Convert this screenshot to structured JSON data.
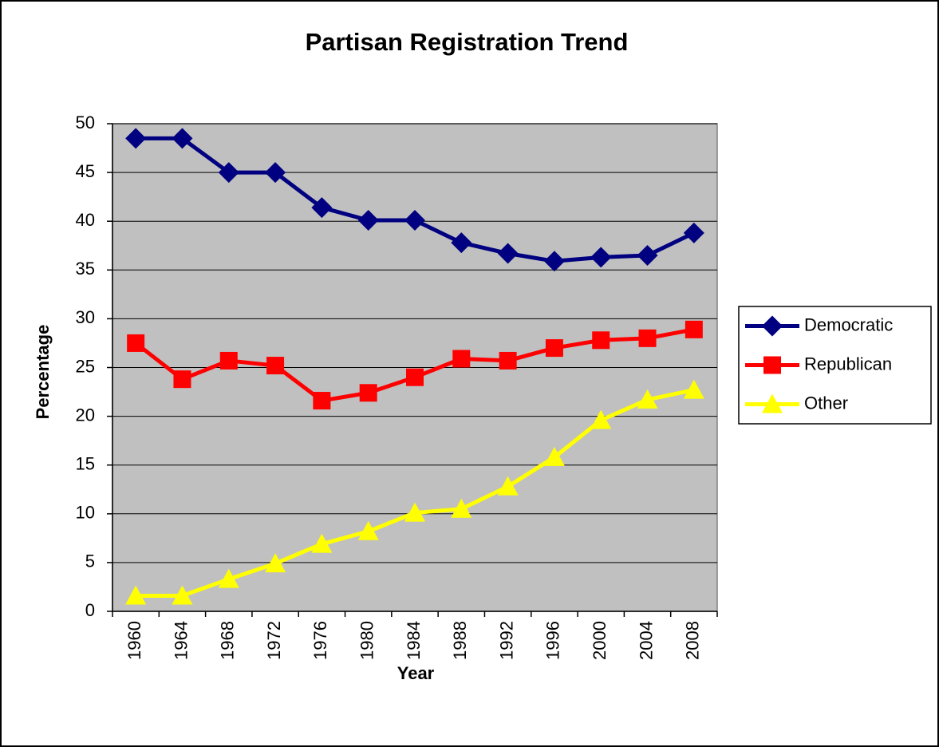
{
  "chart_data": {
    "type": "line",
    "title": "Partisan Registration Trend",
    "x_label": "Year",
    "y_label": "Percentage",
    "categories": [
      "1960",
      "1964",
      "1968",
      "1972",
      "1976",
      "1980",
      "1984",
      "1988",
      "1992",
      "1996",
      "2000",
      "2004",
      "2008"
    ],
    "series": [
      {
        "name": "Democratic",
        "color": "#000080",
        "marker": "diamond",
        "values": [
          48.5,
          48.5,
          45,
          45,
          41.4,
          40.1,
          40.1,
          37.8,
          36.7,
          35.9,
          36.3,
          36.5,
          38.8
        ]
      },
      {
        "name": "Republican",
        "color": "#ff0000",
        "marker": "square",
        "values": [
          27.5,
          23.8,
          25.7,
          25.2,
          21.6,
          22.4,
          24,
          25.9,
          25.7,
          27,
          27.8,
          28,
          28.9
        ]
      },
      {
        "name": "Other",
        "color": "#ffff00",
        "marker": "triangle",
        "values": [
          1.6,
          1.6,
          3.3,
          4.9,
          6.9,
          8.2,
          10.1,
          10.5,
          12.8,
          15.8,
          19.6,
          21.7,
          22.7
        ]
      }
    ],
    "ylim": [
      0,
      50
    ],
    "yticks": [
      0,
      5,
      10,
      15,
      20,
      25,
      30,
      35,
      40,
      45,
      50
    ],
    "grid": true,
    "plot_background": "#c0c0c0",
    "legend": "right"
  }
}
